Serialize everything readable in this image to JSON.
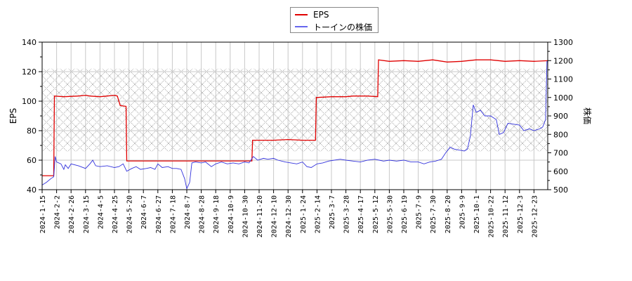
{
  "chart_data": {
    "type": "line",
    "title": "",
    "legend": {
      "position": "top-center",
      "entries": [
        {
          "label": "EPS",
          "color": "#e00000"
        },
        {
          "label": "トーインの株価",
          "color": "#3333dd"
        }
      ]
    },
    "left_axis": {
      "label": "EPS",
      "ylim": [
        40,
        140
      ],
      "ticks": [
        40,
        60,
        80,
        100,
        120,
        140
      ]
    },
    "right_axis": {
      "label": "株価",
      "ylim": [
        500,
        1300
      ],
      "ticks": [
        500,
        600,
        700,
        800,
        900,
        1000,
        1100,
        1200,
        1300
      ]
    },
    "xlabel": "",
    "x_ticks": [
      "2024-1-15",
      "2024-2-2",
      "2024-2-26",
      "2024-3-15",
      "2024-4-5",
      "2024-4-25",
      "2024-5-20",
      "2024-6-7",
      "2024-6-27",
      "2024-7-18",
      "2024-8-7",
      "2024-8-28",
      "2024-9-18",
      "2024-10-9",
      "2024-10-30",
      "2024-11-20",
      "2024-12-10",
      "2024-12-30",
      "2025-1-24",
      "2025-2-14",
      "2025-3-7",
      "2025-3-28",
      "2025-4-17",
      "2025-5-12",
      "2025-5-30",
      "2025-6-19",
      "2025-7-9",
      "2025-7-30",
      "2025-8-20",
      "2025-9-9",
      "2025-10-1",
      "2025-10-22",
      "2025-11-12",
      "2025-12-3",
      "2025-12-23"
    ],
    "grid": true,
    "hatched_band": {
      "eps_from": 66,
      "eps_to": 122,
      "note": "shaded range"
    },
    "series": [
      {
        "name": "EPS",
        "axis": "left",
        "color": "#e00000",
        "points": [
          [
            0,
            49.5
          ],
          [
            0.8,
            49.5
          ],
          [
            0.85,
            103.5
          ],
          [
            1.5,
            103
          ],
          [
            2.5,
            103.5
          ],
          [
            3.0,
            104
          ],
          [
            3.3,
            103.5
          ],
          [
            4.0,
            103
          ],
          [
            4.5,
            103.5
          ],
          [
            5.0,
            104
          ],
          [
            5.2,
            103.5
          ],
          [
            5.4,
            97
          ],
          [
            5.8,
            96.5
          ],
          [
            5.85,
            59.5
          ],
          [
            14.5,
            59.5
          ],
          [
            14.55,
            73.5
          ],
          [
            16.0,
            73.5
          ],
          [
            17.0,
            74
          ],
          [
            18.0,
            73.5
          ],
          [
            18.9,
            73.5
          ],
          [
            18.95,
            102.5
          ],
          [
            20.0,
            103
          ],
          [
            21.0,
            103
          ],
          [
            21.5,
            103.5
          ],
          [
            22.5,
            103.5
          ],
          [
            23.2,
            103
          ],
          [
            23.25,
            128
          ],
          [
            24.0,
            127
          ],
          [
            25.0,
            127.5
          ],
          [
            26.0,
            127
          ],
          [
            27.0,
            128
          ],
          [
            28.0,
            126.5
          ],
          [
            29.0,
            127
          ],
          [
            30.0,
            128
          ],
          [
            31.0,
            128
          ],
          [
            32.0,
            127
          ],
          [
            33.0,
            127.5
          ],
          [
            34.0,
            127
          ],
          [
            35.0,
            127.5
          ],
          [
            35.7,
            127.5
          ]
        ]
      },
      {
        "name": "トーインの株価",
        "axis": "right",
        "color": "#3333dd",
        "points": [
          [
            0,
            525
          ],
          [
            0.3,
            540
          ],
          [
            0.6,
            560
          ],
          [
            0.8,
            570
          ],
          [
            0.85,
            620
          ],
          [
            0.9,
            680
          ],
          [
            1.0,
            650
          ],
          [
            1.3,
            640
          ],
          [
            1.5,
            610
          ],
          [
            1.6,
            635
          ],
          [
            1.8,
            615
          ],
          [
            2.0,
            640
          ],
          [
            2.5,
            630
          ],
          [
            3.0,
            615
          ],
          [
            3.3,
            640
          ],
          [
            3.5,
            660
          ],
          [
            3.7,
            630
          ],
          [
            4.0,
            625
          ],
          [
            4.5,
            630
          ],
          [
            5.0,
            620
          ],
          [
            5.3,
            625
          ],
          [
            5.6,
            640
          ],
          [
            5.85,
            600
          ],
          [
            6.2,
            615
          ],
          [
            6.5,
            625
          ],
          [
            6.8,
            610
          ],
          [
            7.2,
            615
          ],
          [
            7.5,
            620
          ],
          [
            7.8,
            610
          ],
          [
            8.0,
            640
          ],
          [
            8.3,
            620
          ],
          [
            8.7,
            625
          ],
          [
            9.0,
            615
          ],
          [
            9.3,
            615
          ],
          [
            9.6,
            610
          ],
          [
            9.85,
            560
          ],
          [
            10.0,
            505
          ],
          [
            10.2,
            540
          ],
          [
            10.35,
            645
          ],
          [
            10.6,
            650
          ],
          [
            11.0,
            645
          ],
          [
            11.3,
            650
          ],
          [
            11.7,
            625
          ],
          [
            12.0,
            640
          ],
          [
            12.4,
            650
          ],
          [
            12.8,
            640
          ],
          [
            13.2,
            645
          ],
          [
            13.6,
            640
          ],
          [
            14.0,
            650
          ],
          [
            14.3,
            645
          ],
          [
            14.6,
            680
          ],
          [
            14.9,
            660
          ],
          [
            15.3,
            670
          ],
          [
            15.6,
            665
          ],
          [
            16.0,
            670
          ],
          [
            16.3,
            660
          ],
          [
            16.8,
            650
          ],
          [
            17.2,
            645
          ],
          [
            17.6,
            640
          ],
          [
            18.0,
            650
          ],
          [
            18.3,
            625
          ],
          [
            18.6,
            620
          ],
          [
            19.0,
            640
          ],
          [
            19.4,
            645
          ],
          [
            19.8,
            655
          ],
          [
            20.2,
            660
          ],
          [
            20.6,
            665
          ],
          [
            21.0,
            660
          ],
          [
            21.5,
            655
          ],
          [
            22.0,
            650
          ],
          [
            22.5,
            660
          ],
          [
            23.0,
            665
          ],
          [
            23.3,
            660
          ],
          [
            23.6,
            655
          ],
          [
            24.0,
            660
          ],
          [
            24.5,
            655
          ],
          [
            25.0,
            660
          ],
          [
            25.5,
            650
          ],
          [
            26.0,
            650
          ],
          [
            26.4,
            640
          ],
          [
            26.8,
            650
          ],
          [
            27.2,
            655
          ],
          [
            27.6,
            665
          ],
          [
            27.9,
            700
          ],
          [
            28.2,
            730
          ],
          [
            28.5,
            720
          ],
          [
            28.8,
            715
          ],
          [
            29.2,
            710
          ],
          [
            29.4,
            720
          ],
          [
            29.6,
            790
          ],
          [
            29.8,
            960
          ],
          [
            30.0,
            920
          ],
          [
            30.3,
            930
          ],
          [
            30.6,
            900
          ],
          [
            31.0,
            900
          ],
          [
            31.4,
            880
          ],
          [
            31.6,
            800
          ],
          [
            31.9,
            810
          ],
          [
            32.2,
            860
          ],
          [
            32.6,
            855
          ],
          [
            33.0,
            850
          ],
          [
            33.3,
            820
          ],
          [
            33.7,
            830
          ],
          [
            34.0,
            820
          ],
          [
            34.4,
            830
          ],
          [
            34.6,
            840
          ],
          [
            34.8,
            880
          ],
          [
            34.9,
            1195
          ],
          [
            35.2,
            1180
          ],
          [
            35.7,
            1185
          ]
        ]
      }
    ]
  }
}
